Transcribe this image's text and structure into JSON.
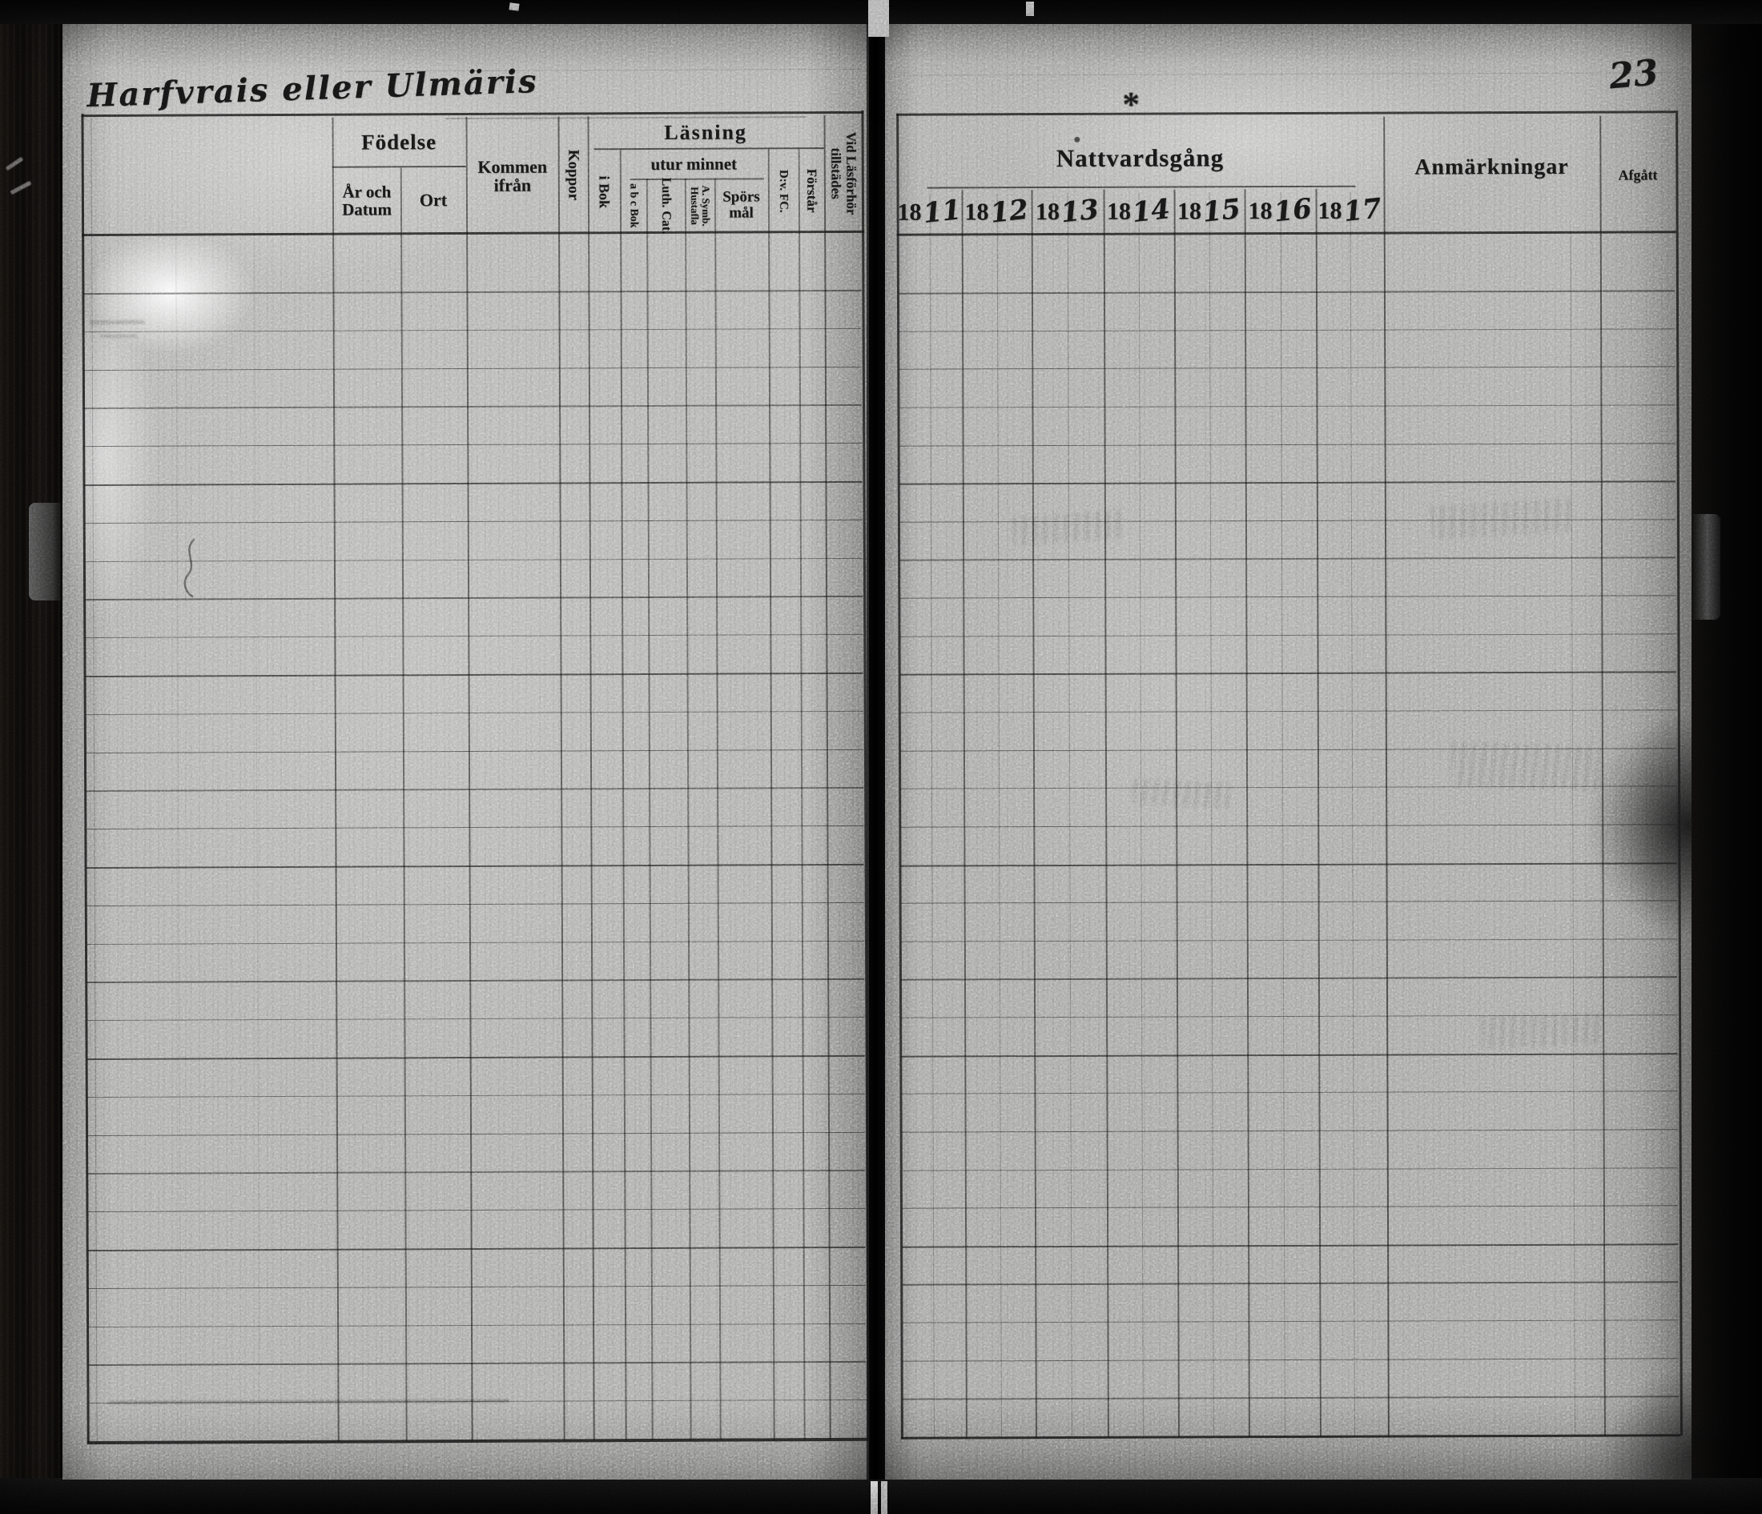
{
  "book": {
    "handwritten_title": "Harfvrais eller Ulmäris",
    "page_number": "23",
    "ornament": "*"
  },
  "left_page": {
    "columns": {
      "fodelse": {
        "group": "Födelse",
        "year_date": "År och Datum",
        "place": "Ort"
      },
      "kommen_ifran": "Kommen ifrån",
      "koppor": "Koppor",
      "lasning": {
        "group": "Läsning",
        "i_bok": "i Bok",
        "utur_minnet": {
          "group": "utur minnet",
          "abc_bok": "a b c Bok",
          "luth_cat": "Luth. Cat.",
          "a_symb_hustafla": "A. Symb. Hustafla",
          "sporsmal": "Spörsmål"
        },
        "dv_fc": "D:v. FC.",
        "forstar": "Förstår"
      },
      "vid_lasforhor": "Vid Läsförhör tillstädes"
    }
  },
  "right_page": {
    "nattvardsgang": {
      "group": "Nattvardsgång",
      "years": [
        "1811",
        "1812",
        "1813",
        "1814",
        "1815",
        "1816",
        "1817"
      ]
    },
    "anmarkningar": "Anmärkningar",
    "afgatt": "Afgått"
  },
  "grid": {
    "rows": 31,
    "year_subcolumns": 2
  }
}
